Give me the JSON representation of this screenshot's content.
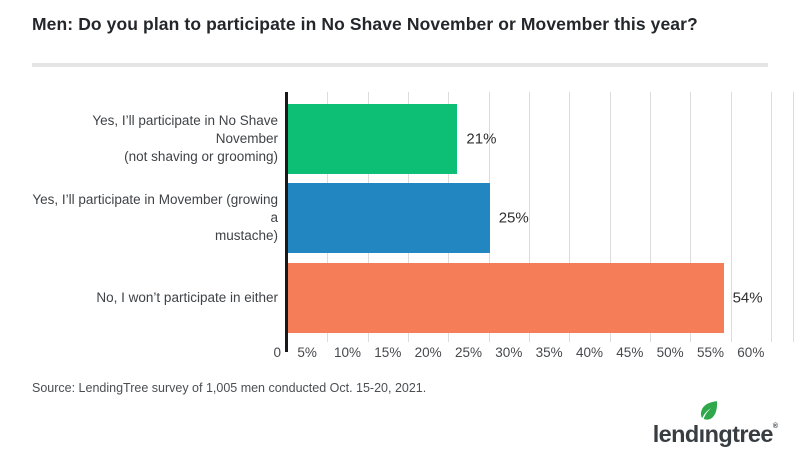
{
  "chart_data": {
    "type": "bar",
    "orientation": "horizontal",
    "title": "Men: Do you plan to participate in No Shave November or Movember this year?",
    "categories": [
      "Yes, I’ll participate in No Shave November (not shaving or grooming)",
      "Yes, I’ll participate in Movember (growing a mustache)",
      "No, I won’t participate in either"
    ],
    "category_lines": [
      [
        "Yes, I’ll participate in No Shave November",
        "(not shaving or grooming)"
      ],
      [
        "Yes, I’ll participate in Movember (growing a",
        "mustache)"
      ],
      [
        "No, I won’t participate in either"
      ]
    ],
    "values": [
      21,
      25,
      54
    ],
    "value_labels": [
      "21%",
      "25%",
      "54%"
    ],
    "colors": [
      "#0dbe75",
      "#2287c1",
      "#f57d58"
    ],
    "xlim": [
      0,
      60
    ],
    "x_ticks": [
      "0",
      "5%",
      "10%",
      "15%",
      "20%",
      "25%",
      "30%",
      "35%",
      "40%",
      "45%",
      "50%",
      "55%",
      "60%"
    ],
    "grid": "vertical",
    "gridline_color": "#dcdcdc",
    "axis_color": "#17181a",
    "legend": "none"
  },
  "footer": {
    "source": "Source: LendingTree survey of 1,005 men conducted Oct. 15-20, 2021.",
    "logo": {
      "part1": "lend",
      "dotless_i": "ı",
      "part2": "ngtree",
      "registered": "®",
      "leaf_icon": "leaf-icon",
      "leaf_color": "#2fa84b",
      "text_color": "#383d42"
    }
  }
}
